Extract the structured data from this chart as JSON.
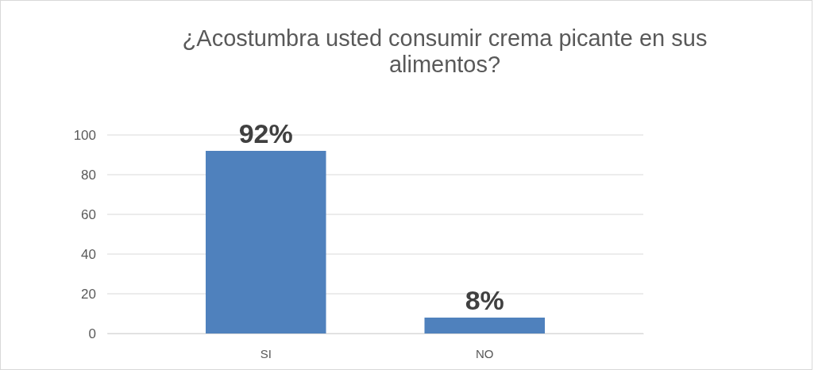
{
  "chart_data": {
    "type": "bar",
    "title": "¿Acostumbra usted consumir crema picante en sus alimentos?",
    "categories": [
      "SI",
      "NO"
    ],
    "values": [
      92,
      8
    ],
    "value_labels": [
      "92%",
      "8%"
    ],
    "color": "#4f81bd",
    "ylim": [
      0,
      100
    ],
    "yticks": [
      0,
      20,
      40,
      60,
      80,
      100
    ],
    "grid": "y"
  }
}
